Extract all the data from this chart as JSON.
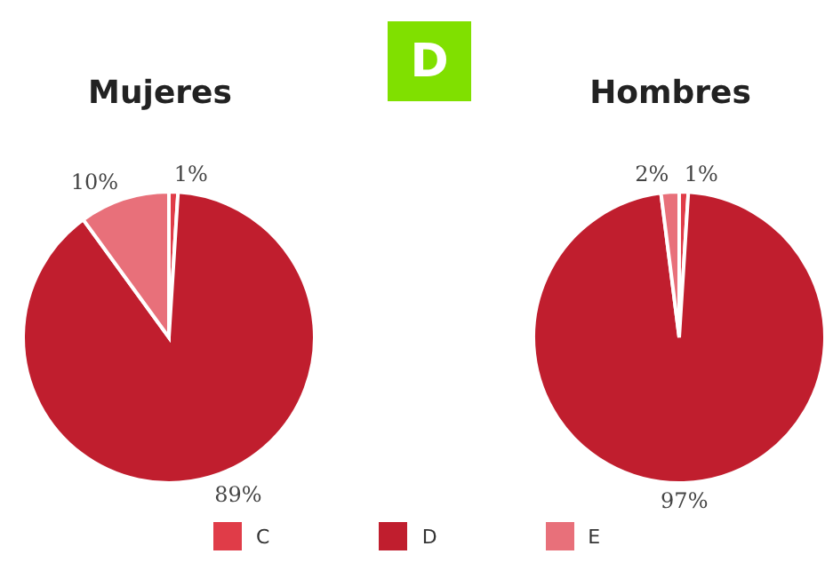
{
  "chart_data": [
    {
      "type": "pie",
      "title": "Mujeres",
      "annotations": [
        "D"
      ],
      "categories": [
        "C",
        "D",
        "E"
      ],
      "values": [
        1,
        89,
        10
      ],
      "value_labels": [
        "1%",
        "89%",
        "10%"
      ],
      "colors": [
        "#e03c48",
        "#c01e2e",
        "#e8707a"
      ],
      "legend": "bottom"
    },
    {
      "type": "pie",
      "title": "Hombres",
      "values": [
        1,
        97,
        2
      ],
      "value_labels": [
        "1%",
        "97%",
        "2%"
      ],
      "colors": [
        "#e03c48",
        "#c01e2e",
        "#e8707a"
      ]
    }
  ]
}
